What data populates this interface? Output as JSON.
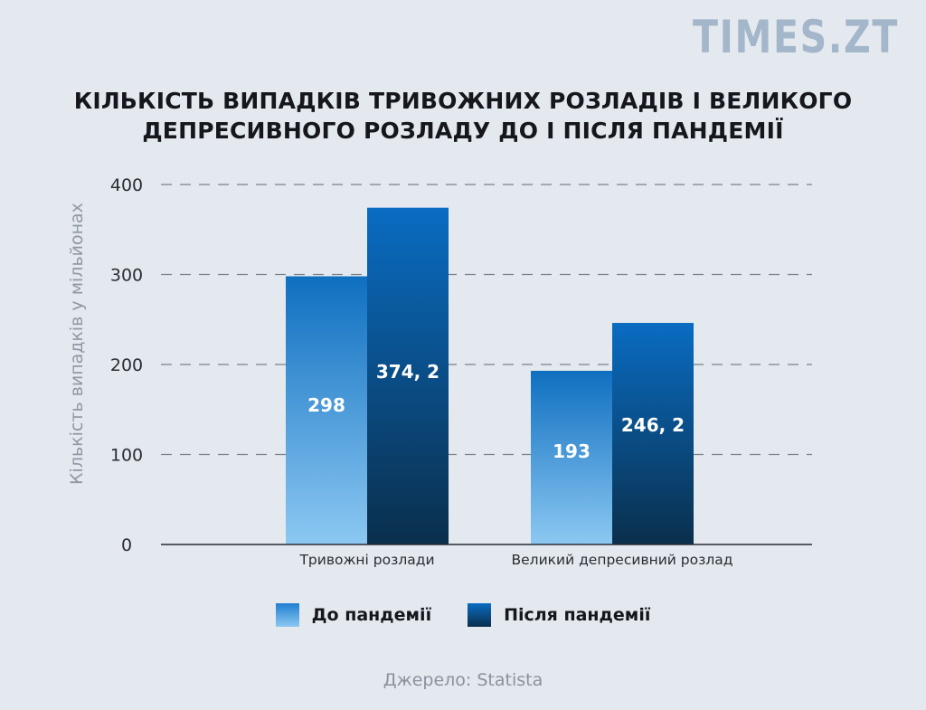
{
  "logo": "TIMES.ZT",
  "title_lines": [
    "КІЛЬКІСТЬ ВИПАДКІВ ТРИВОЖНИХ РОЗЛАДІВ І ВЕЛИКОГО",
    "ДЕПРЕСИВНОГО РОЗЛАДУ ДО І ПІСЛЯ ПАНДЕМІЇ"
  ],
  "source": "Джерело: Statista",
  "chart_data": {
    "type": "bar",
    "title": "КІЛЬКІСТЬ ВИПАДКІВ ТРИВОЖНИХ РОЗЛАДІВ І ВЕЛИКОГО ДЕПРЕСИВНОГО РОЗЛАДУ ДО І ПІСЛЯ ПАНДЕМІЇ",
    "ylabel": "Кількість випадків у мільйонах",
    "xlabel": "",
    "categories": [
      "Тривожні розлади",
      "Великий депресивний розлад"
    ],
    "ylim": [
      0,
      400
    ],
    "yticks": [
      "0",
      "100",
      "200",
      "300",
      "400"
    ],
    "grid": true,
    "legend_position": "bottom",
    "series": [
      {
        "name": "До пандемії",
        "values": [
          298,
          193
        ],
        "labels": [
          "298",
          "193"
        ],
        "color_top": "#0f6fc0",
        "color_bottom": "#8cc8f2"
      },
      {
        "name": "Після пандемії",
        "values": [
          374.2,
          246.2
        ],
        "labels": [
          "374, 2",
          "246, 2"
        ],
        "color_top": "#0a6cc2",
        "color_bottom": "#0a2f4c"
      }
    ]
  }
}
